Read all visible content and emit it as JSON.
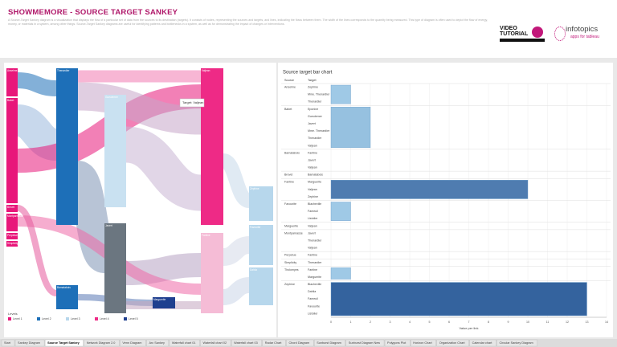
{
  "header": {
    "title": "SHOWMEMORE - SOURCE TARGET SANKEY",
    "description": "A Source-Target Sankey diagram is a visualization that displays the flow of a particular set of data from the sources to its destination (targets). It consists of nodes, representing the sources and targets, and lines, indicating the flows between them. The width of the lines corresponds to the quantity being measured. This type of diagram is often used to depict the flow of energy, money, or materials in a system, among other things. Source-Target Sankey diagrams are useful for identifying patterns and bottlenecks in a system, as well as for demonstrating the impact of changes or interventions.",
    "logo_video": "VIDEO",
    "logo_tutorial": "TUTORIAL",
    "logo_brand": "infotopics",
    "logo_tagline": "apps for tableau"
  },
  "sankey": {
    "tooltip": "Target: Valjean",
    "legend_title": "Levels",
    "levels": [
      {
        "name": "Level 1",
        "color": "#e8177a"
      },
      {
        "name": "Level 2",
        "color": "#1d6fb8"
      },
      {
        "name": "Level 3",
        "color": "#b7d7ec"
      },
      {
        "name": "Level 4",
        "color": "#ee2a86"
      },
      {
        "name": "Level 5",
        "color": "#1f3f8f"
      }
    ],
    "nodes": [
      {
        "label": "Anselme",
        "color": "#e8177a"
      },
      {
        "label": "Babet",
        "color": "#e8177a"
      },
      {
        "label": "Brevet",
        "color": "#e8177a"
      },
      {
        "label": "Montparnasse",
        "color": "#e8177a"
      },
      {
        "label": "Perpetue",
        "color": "#e8177a"
      },
      {
        "label": "Simplicity",
        "color": "#e8177a"
      },
      {
        "label": "Thenardier",
        "color": "#1d6fb8"
      },
      {
        "label": "Bamatabois",
        "color": "#1d6fb8"
      },
      {
        "label": "Gueulemer",
        "color": "#c9e1f1"
      },
      {
        "label": "Javert",
        "color": "#6b7680"
      },
      {
        "label": "Marguerite",
        "color": "#1f3f8f"
      },
      {
        "label": "Valjean",
        "color": "#ee2a86"
      },
      {
        "label": "Fantine",
        "color": "#f5bcd6"
      },
      {
        "label": "Zephine",
        "color": "#b7d7ec"
      },
      {
        "label": "Favourite",
        "color": "#b7d7ec"
      },
      {
        "label": "Dahlia",
        "color": "#b7d7ec"
      }
    ]
  },
  "chart_data": {
    "type": "bar",
    "title": "Source target bar chart",
    "column_headers": [
      "Source",
      "Target"
    ],
    "groups": [
      {
        "source": "Anselme",
        "targets": [
          "Zephine",
          "Mme. Thenardier",
          "Thenardier"
        ],
        "value": 1
      },
      {
        "source": "Babet",
        "targets": [
          "Eponine",
          "Gueulemer",
          "Javert",
          "Mme. Thenardier",
          "Thenardier",
          "Valjean"
        ],
        "value": 2
      },
      {
        "source": "Bamatabois",
        "targets": [
          "Fantine",
          "Javert",
          "Valjean"
        ],
        "value": null
      },
      {
        "source": "Brevet",
        "targets": [
          "Bamatabois"
        ],
        "value": null
      },
      {
        "source": "Fantine",
        "targets": [
          "Marguerite",
          "Valjean",
          "Zephine"
        ],
        "value": 10
      },
      {
        "source": "Favourite",
        "targets": [
          "Blacheville",
          "Fameuil",
          "Listolier"
        ],
        "value": 1
      },
      {
        "source": "Marguerite",
        "targets": [
          "Valjean"
        ],
        "value": null
      },
      {
        "source": "Montparnasse",
        "targets": [
          "Javert",
          "Thenardier",
          "Valjean"
        ],
        "value": null
      },
      {
        "source": "Perpetue",
        "targets": [
          "Fantine"
        ],
        "value": null
      },
      {
        "source": "Simplicity",
        "targets": [
          "Thenardier"
        ],
        "value": null
      },
      {
        "source": "Tholomyes",
        "targets": [
          "Fantine",
          "Marguerite"
        ],
        "value": 1
      },
      {
        "source": "Zephine",
        "targets": [
          "Blacheville",
          "Dahlia",
          "Fameuil",
          "Favourite",
          "Listolier"
        ],
        "value": 13
      }
    ],
    "xlim": [
      0,
      14
    ],
    "xticks": [
      0,
      1,
      2,
      3,
      4,
      5,
      6,
      7,
      8,
      9,
      10,
      11,
      12,
      13,
      14
    ],
    "xlabel": "Value per link",
    "color_low": "#a8d2ec",
    "color_high": "#2b5a98"
  },
  "tabs": [
    "Start",
    "Sankey Diagram",
    "Source Target Sankey",
    "Network Diagram 2.0",
    "Venn Diagram",
    "Arc Sankey",
    "Waterfall chart 01",
    "Waterfall chart 02",
    "Waterfall chart 03",
    "Radar Chart",
    "Chord Diagram",
    "Sunburst Diagram",
    "Sunburst Diagram New",
    "Polygons Plot",
    "Horizon Chart",
    "Organization Chart",
    "Calendar chart",
    "Circular Sankey Diagram"
  ],
  "active_tab": 2
}
